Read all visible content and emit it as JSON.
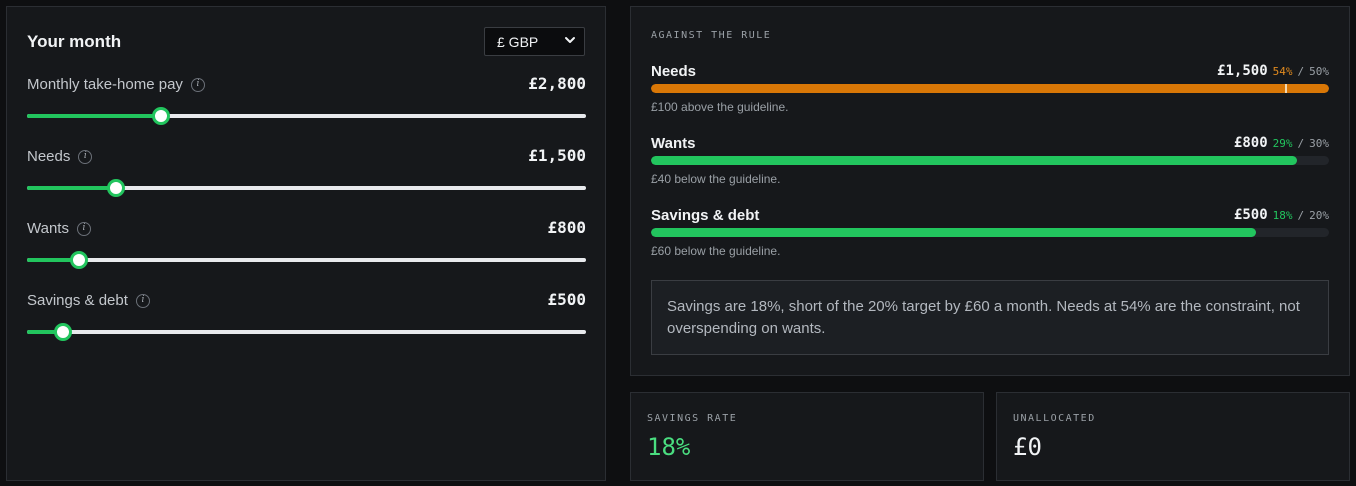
{
  "left_panel": {
    "title": "Your month",
    "currency": {
      "selected": "£ GBP"
    },
    "sliders": [
      {
        "label": "Monthly take-home pay",
        "value": "£2,800",
        "fraction": 0.24
      },
      {
        "label": "Needs",
        "value": "£1,500",
        "fraction": 0.16
      },
      {
        "label": "Wants",
        "value": "£800",
        "fraction": 0.093
      },
      {
        "label": "Savings & debt",
        "value": "£500",
        "fraction": 0.065
      }
    ]
  },
  "rule_panel": {
    "heading": "AGAINST THE RULE",
    "categories": [
      {
        "name": "Needs",
        "amount": "£1,500",
        "pct": "54%",
        "sep": "/",
        "target": "50%",
        "note": "£100 above the guideline.",
        "status": "over",
        "fill": 1.0,
        "target_fraction": 0.935,
        "color": "#d97706"
      },
      {
        "name": "Wants",
        "amount": "£800",
        "pct": "29%",
        "sep": "/",
        "target": "30%",
        "note": "£40 below the guideline.",
        "status": "under",
        "fill": 0.953,
        "color": "#22c55e"
      },
      {
        "name": "Savings & debt",
        "amount": "£500",
        "pct": "18%",
        "sep": "/",
        "target": "20%",
        "note": "£60 below the guideline.",
        "status": "under",
        "fill": 0.893,
        "color": "#22c55e"
      }
    ],
    "callout": "Savings are 18%, short of the 20% target by £60 a month. Needs at 54% are the constraint, not overspending on wants."
  },
  "savings_rate": {
    "label": "SAVINGS RATE",
    "value": "18%"
  },
  "unallocated": {
    "label": "UNALLOCATED",
    "value": "£0"
  },
  "colors": {
    "accent_green": "#22c55e",
    "accent_orange": "#d97706",
    "background": "#0e0f11",
    "panel": "#16181b"
  },
  "icons": {
    "info": "info-icon",
    "dropdown": "chevron-down-icon"
  }
}
